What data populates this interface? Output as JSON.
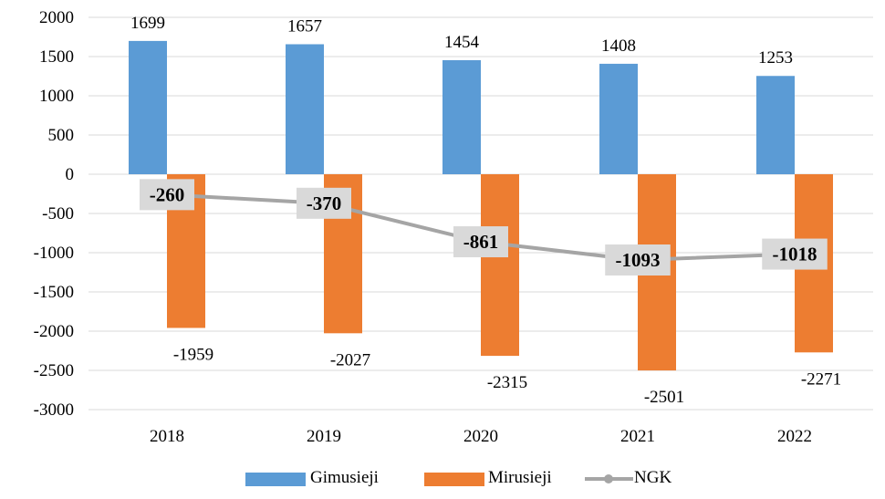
{
  "chart_data": {
    "type": "bar",
    "categories": [
      "2018",
      "2019",
      "2020",
      "2021",
      "2022"
    ],
    "series": [
      {
        "name": "Gimusieji",
        "type": "bar",
        "values": [
          1699,
          1657,
          1454,
          1408,
          1253
        ],
        "color": "#5B9BD5"
      },
      {
        "name": "Mirusieji",
        "type": "bar",
        "values": [
          -1959,
          -2027,
          -2315,
          -2501,
          -2271
        ],
        "color": "#ED7D31"
      },
      {
        "name": "NGK",
        "type": "line",
        "values": [
          -260,
          -370,
          -861,
          -1093,
          -1018
        ],
        "color": "#A5A5A5"
      }
    ],
    "y_ticks": [
      "2000",
      "1500",
      "1000",
      "500",
      "0",
      "-500",
      "-1000",
      "-1500",
      "-2000",
      "-2500",
      "-3000"
    ],
    "ylim": [
      -3000,
      2000
    ],
    "grid": true,
    "legend_position": "bottom"
  }
}
